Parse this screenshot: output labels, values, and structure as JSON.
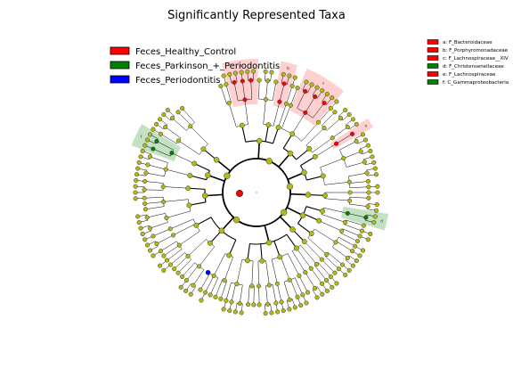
{
  "chart_data": {
    "type": "cladogram",
    "title": "Significantly Represented Taxa",
    "groups": [
      {
        "name": "Feces_Healthy_Control",
        "color": "#ff0000",
        "shade": "#ffbcbc"
      },
      {
        "name": "Feces_Parkinson_+_Periodontitis",
        "color": "#008000",
        "shade": "#a9d6a9"
      },
      {
        "name": "Feces_Periodontitis",
        "color": "#0000ff",
        "shade": "#b3b3ff"
      }
    ],
    "neutral_color": "#b5b913",
    "rings": 5,
    "highlighted_clades": [
      {
        "letter": "a",
        "label": "F_Bacteroidaceae",
        "group": "Feces_Healthy_Control"
      },
      {
        "letter": "b",
        "label": "F_Porphyromonadaceae",
        "group": "Feces_Healthy_Control"
      },
      {
        "letter": "c",
        "label": "F_Lachnospiraceae__XIV",
        "group": "Feces_Healthy_Control"
      },
      {
        "letter": "d",
        "label": "F_Christensenellaceae",
        "group": "Feces_Parkinson_+_Periodontitis"
      },
      {
        "letter": "e",
        "label": "F_Lachnospiraceae",
        "group": "Feces_Healthy_Control"
      },
      {
        "letter": "f",
        "label": "C_Gammaproteobacteria",
        "group": "Feces_Parkinson_+_Periodontitis"
      }
    ]
  }
}
